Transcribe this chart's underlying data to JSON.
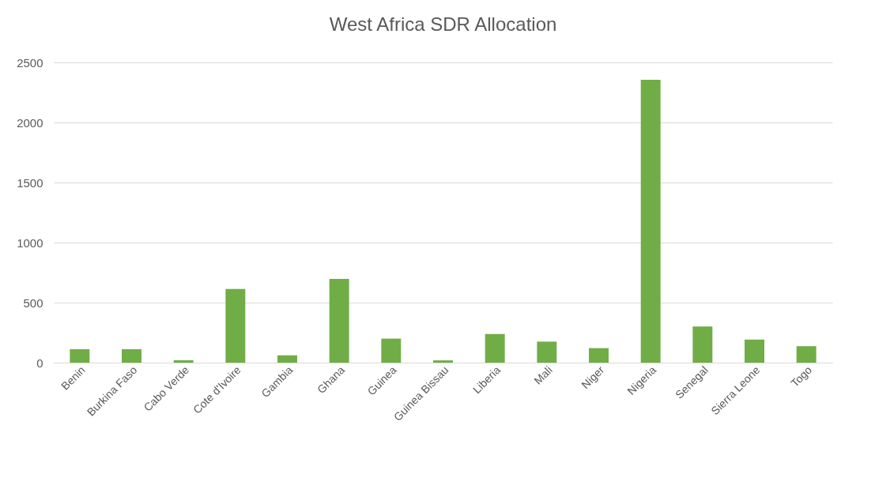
{
  "chart_data": {
    "type": "bar",
    "title": "West Africa SDR Allocation",
    "categories": [
      "Benin",
      "Burkina Faso",
      "Cabo Verde",
      "Cote d'Ivoire",
      "Gambia",
      "Ghana",
      "Guinea",
      "Guinea Bissau",
      "Liberia",
      "Mali",
      "Niger",
      "Nigeria",
      "Senegal",
      "Sierra Leone",
      "Togo"
    ],
    "values": [
      112,
      112,
      20,
      614,
      61,
      697,
      200,
      19,
      239,
      175,
      121,
      2355,
      301,
      192,
      137
    ],
    "color": "#70ad47",
    "ylim": [
      0,
      2500
    ],
    "yticks": [
      0,
      500,
      1000,
      1500,
      2000,
      2500
    ],
    "grid": "y"
  }
}
